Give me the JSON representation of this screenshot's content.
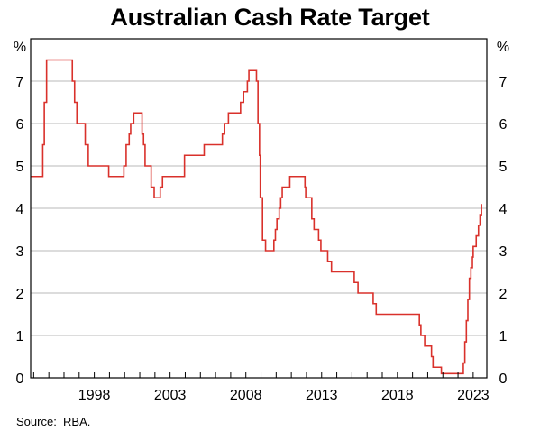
{
  "chart_data": {
    "type": "line",
    "title": "Australian Cash Rate Target",
    "unit_left": "%",
    "unit_right": "%",
    "source_label": "Source:",
    "source_value": "RBA.",
    "xlim": [
      1993.8,
      2023.9
    ],
    "ylim": [
      0,
      8
    ],
    "y_ticks": [
      0,
      1,
      2,
      3,
      4,
      5,
      6,
      7
    ],
    "x_tick_labels": [
      "1998",
      "2003",
      "2008",
      "2013",
      "2018",
      "2023"
    ],
    "x_tick_values": [
      1998,
      2003,
      2008,
      2013,
      2018,
      2023
    ],
    "grid": true,
    "line_color": "#d9312b",
    "grid_color": "#b8b8b8",
    "series": [
      {
        "values": [
          [
            1993.8,
            4.75
          ],
          [
            1994.5,
            4.75
          ],
          [
            1994.6,
            5.5
          ],
          [
            1994.7,
            6.5
          ],
          [
            1994.85,
            7.5
          ],
          [
            1996.5,
            7.5
          ],
          [
            1996.55,
            7.0
          ],
          [
            1996.6,
            7.0
          ],
          [
            1996.7,
            6.5
          ],
          [
            1996.85,
            6.0
          ],
          [
            1997.3,
            6.0
          ],
          [
            1997.4,
            5.5
          ],
          [
            1997.6,
            5.0
          ],
          [
            1998.9,
            5.0
          ],
          [
            1998.95,
            4.75
          ],
          [
            1999.9,
            4.75
          ],
          [
            1999.95,
            5.0
          ],
          [
            2000.1,
            5.5
          ],
          [
            2000.3,
            5.75
          ],
          [
            2000.4,
            6.0
          ],
          [
            2000.6,
            6.25
          ],
          [
            2001.1,
            6.25
          ],
          [
            2001.15,
            5.75
          ],
          [
            2001.25,
            5.5
          ],
          [
            2001.35,
            5.0
          ],
          [
            2001.7,
            5.0
          ],
          [
            2001.75,
            4.5
          ],
          [
            2001.95,
            4.25
          ],
          [
            2002.35,
            4.5
          ],
          [
            2002.5,
            4.75
          ],
          [
            2003.9,
            4.75
          ],
          [
            2003.95,
            5.25
          ],
          [
            2005.2,
            5.25
          ],
          [
            2005.25,
            5.5
          ],
          [
            2006.4,
            5.5
          ],
          [
            2006.45,
            5.75
          ],
          [
            2006.6,
            6.0
          ],
          [
            2006.85,
            6.25
          ],
          [
            2007.6,
            6.25
          ],
          [
            2007.65,
            6.5
          ],
          [
            2007.85,
            6.75
          ],
          [
            2008.1,
            7.0
          ],
          [
            2008.2,
            7.25
          ],
          [
            2008.6,
            7.25
          ],
          [
            2008.7,
            7.0
          ],
          [
            2008.8,
            6.0
          ],
          [
            2008.9,
            5.25
          ],
          [
            2008.95,
            4.25
          ],
          [
            2009.1,
            3.25
          ],
          [
            2009.3,
            3.0
          ],
          [
            2009.8,
            3.0
          ],
          [
            2009.85,
            3.25
          ],
          [
            2009.95,
            3.5
          ],
          [
            2010.05,
            3.75
          ],
          [
            2010.2,
            4.0
          ],
          [
            2010.3,
            4.25
          ],
          [
            2010.4,
            4.5
          ],
          [
            2010.85,
            4.5
          ],
          [
            2010.9,
            4.75
          ],
          [
            2011.85,
            4.75
          ],
          [
            2011.9,
            4.5
          ],
          [
            2011.95,
            4.25
          ],
          [
            2012.3,
            4.25
          ],
          [
            2012.35,
            3.75
          ],
          [
            2012.5,
            3.5
          ],
          [
            2012.8,
            3.25
          ],
          [
            2012.95,
            3.0
          ],
          [
            2013.35,
            3.0
          ],
          [
            2013.4,
            2.75
          ],
          [
            2013.65,
            2.5
          ],
          [
            2015.1,
            2.5
          ],
          [
            2015.15,
            2.25
          ],
          [
            2015.4,
            2.0
          ],
          [
            2016.35,
            2.0
          ],
          [
            2016.4,
            1.75
          ],
          [
            2016.6,
            1.5
          ],
          [
            2019.4,
            1.5
          ],
          [
            2019.45,
            1.25
          ],
          [
            2019.55,
            1.0
          ],
          [
            2019.8,
            0.75
          ],
          [
            2020.2,
            0.75
          ],
          [
            2020.25,
            0.5
          ],
          [
            2020.35,
            0.25
          ],
          [
            2020.85,
            0.25
          ],
          [
            2020.9,
            0.1
          ],
          [
            2022.3,
            0.1
          ],
          [
            2022.35,
            0.35
          ],
          [
            2022.45,
            0.85
          ],
          [
            2022.55,
            1.35
          ],
          [
            2022.65,
            1.85
          ],
          [
            2022.75,
            2.35
          ],
          [
            2022.85,
            2.6
          ],
          [
            2022.95,
            2.85
          ],
          [
            2023.0,
            3.1
          ],
          [
            2023.2,
            3.35
          ],
          [
            2023.35,
            3.6
          ],
          [
            2023.45,
            3.85
          ],
          [
            2023.55,
            4.1
          ]
        ]
      }
    ]
  }
}
